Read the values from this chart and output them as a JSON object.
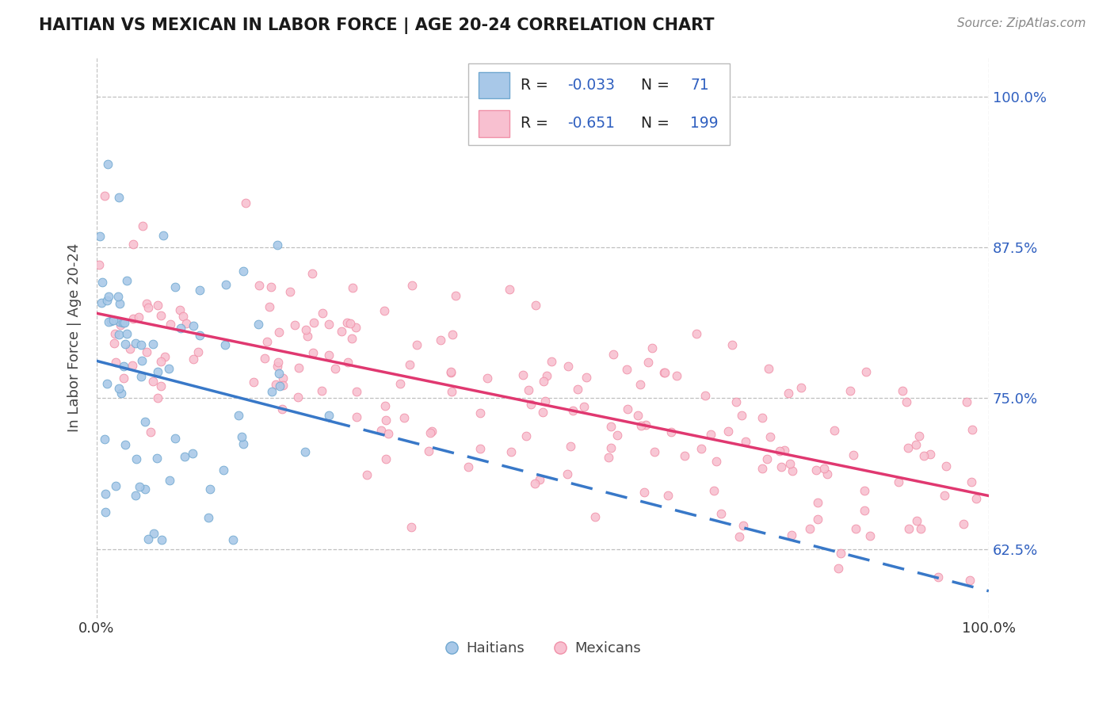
{
  "title": "HAITIAN VS MEXICAN IN LABOR FORCE | AGE 20-24 CORRELATION CHART",
  "source_text": "Source: ZipAtlas.com",
  "ylabel": "In Labor Force | Age 20-24",
  "x_min": 0.0,
  "x_max": 1.0,
  "y_min": 0.568,
  "y_max": 1.032,
  "y_ticks": [
    0.625,
    0.75,
    0.875,
    1.0
  ],
  "y_tick_labels": [
    "62.5%",
    "75.0%",
    "87.5%",
    "100.0%"
  ],
  "x_ticks": [
    0.0,
    1.0
  ],
  "x_tick_labels": [
    "0.0%",
    "100.0%"
  ],
  "haitian_R": -0.033,
  "haitian_N": 71,
  "mexican_R": -0.651,
  "mexican_N": 199,
  "haitian_dot_face": "#a8c8e8",
  "haitian_dot_edge": "#70a8d0",
  "mexican_dot_face": "#f8c0d0",
  "mexican_dot_edge": "#f090a8",
  "trend_blue": "#3878c8",
  "trend_pink": "#e03870",
  "background": "#ffffff",
  "grid_color": "#c0c0c0",
  "title_color": "#1a1a1a",
  "ylabel_color": "#444444",
  "legend_value_color": "#3060c0",
  "legend_label_color": "#222222",
  "right_tick_color": "#3060c0",
  "bottom_legend_color": "#444444",
  "source_color": "#888888"
}
